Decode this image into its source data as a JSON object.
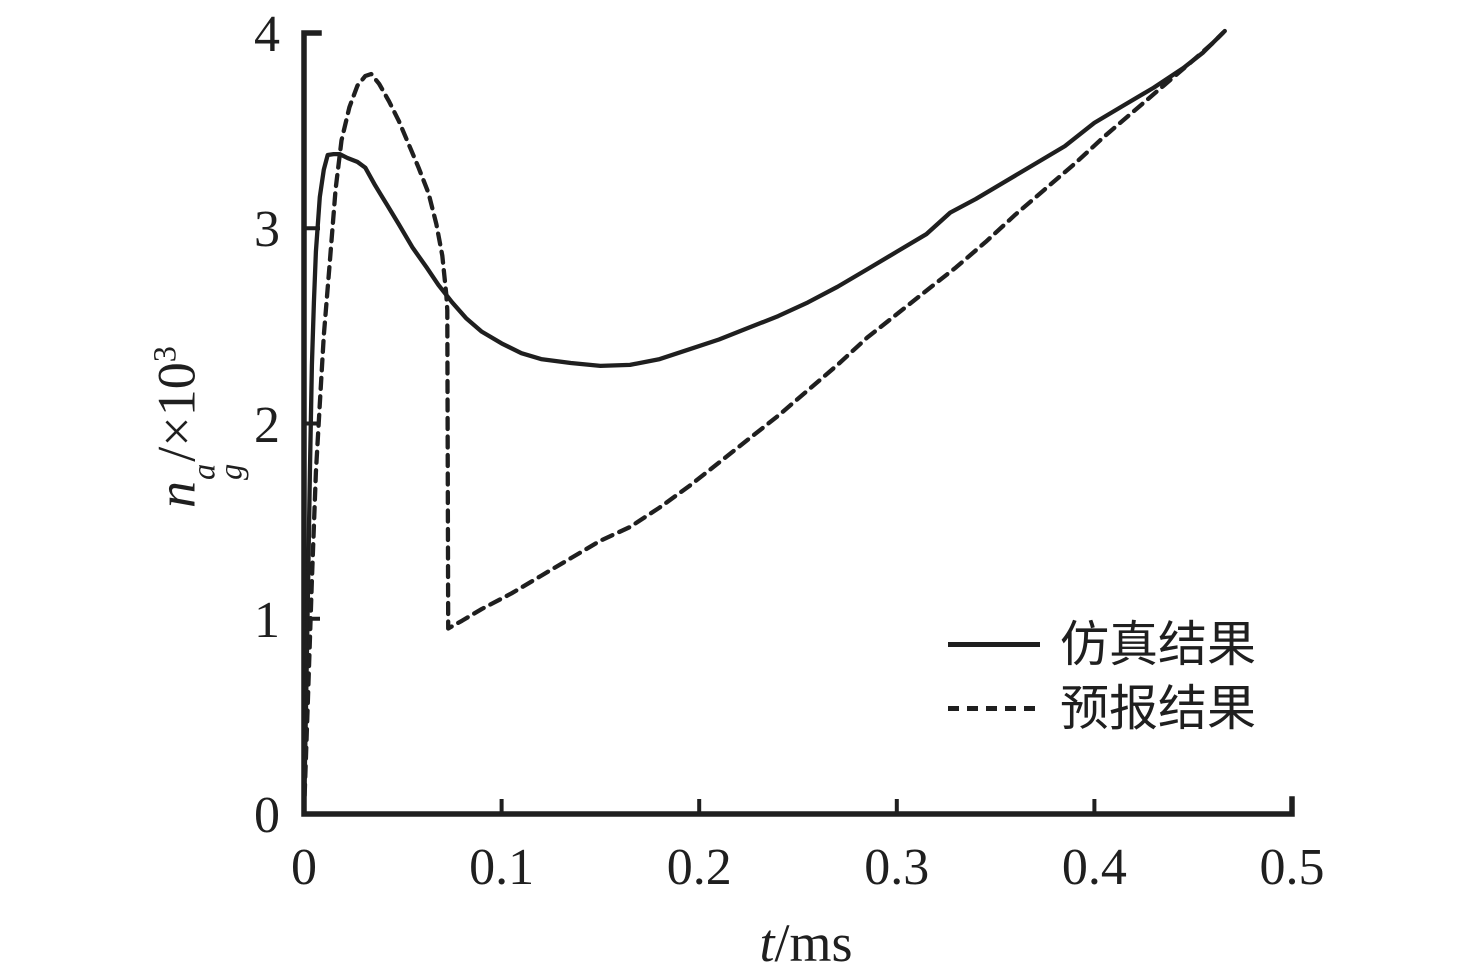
{
  "figure": {
    "background": "#ffffff",
    "line_color": "#1f1f1f",
    "axis_color": "#1f1f1f"
  },
  "chart_data": {
    "type": "line",
    "title": "",
    "xlabel": "t/ms",
    "xlabel_parts": {
      "var": "t",
      "unit": "/ms"
    },
    "ylabel": "n_g^a/×10^3",
    "ylabel_parts": {
      "var": "n",
      "sup": "a",
      "sub": "g",
      "unit": "/×10",
      "exp": "3"
    },
    "xlim": [
      0,
      0.5
    ],
    "ylim": [
      0,
      4
    ],
    "grid": false,
    "x_ticks": [
      0,
      0.1,
      0.2,
      0.3,
      0.4,
      0.5
    ],
    "x_tick_labels": [
      "0",
      "0.1",
      "0.2",
      "0.3",
      "0.4",
      "0.5"
    ],
    "y_ticks": [
      0,
      1,
      2,
      3,
      4
    ],
    "y_tick_labels": [
      "0",
      "1",
      "2",
      "3",
      "4"
    ],
    "legend_position": "inside lower right",
    "series": [
      {
        "name": "仿真结果",
        "style": "solid",
        "color": "#1f1f1f",
        "points": [
          [
            0,
            0
          ],
          [
            0.001,
            0.55
          ],
          [
            0.002,
            1.15
          ],
          [
            0.003,
            1.75
          ],
          [
            0.004,
            2.3
          ],
          [
            0.005,
            2.62
          ],
          [
            0.006,
            2.88
          ],
          [
            0.008,
            3.16
          ],
          [
            0.01,
            3.3
          ],
          [
            0.012,
            3.375
          ],
          [
            0.015,
            3.38
          ],
          [
            0.018,
            3.38
          ],
          [
            0.022,
            3.36
          ],
          [
            0.027,
            3.34
          ],
          [
            0.031,
            3.31
          ],
          [
            0.036,
            3.22
          ],
          [
            0.042,
            3.12
          ],
          [
            0.048,
            3.02
          ],
          [
            0.055,
            2.9
          ],
          [
            0.062,
            2.8
          ],
          [
            0.068,
            2.71
          ],
          [
            0.075,
            2.62
          ],
          [
            0.082,
            2.54
          ],
          [
            0.09,
            2.47
          ],
          [
            0.1,
            2.41
          ],
          [
            0.11,
            2.36
          ],
          [
            0.12,
            2.33
          ],
          [
            0.135,
            2.31
          ],
          [
            0.15,
            2.295
          ],
          [
            0.165,
            2.3
          ],
          [
            0.18,
            2.33
          ],
          [
            0.195,
            2.38
          ],
          [
            0.21,
            2.43
          ],
          [
            0.225,
            2.49
          ],
          [
            0.24,
            2.55
          ],
          [
            0.255,
            2.62
          ],
          [
            0.27,
            2.7
          ],
          [
            0.285,
            2.79
          ],
          [
            0.3,
            2.88
          ],
          [
            0.315,
            2.97
          ],
          [
            0.327,
            3.08
          ],
          [
            0.34,
            3.15
          ],
          [
            0.355,
            3.24
          ],
          [
            0.37,
            3.33
          ],
          [
            0.385,
            3.42
          ],
          [
            0.4,
            3.54
          ],
          [
            0.415,
            3.63
          ],
          [
            0.43,
            3.72
          ],
          [
            0.445,
            3.82
          ],
          [
            0.455,
            3.9
          ],
          [
            0.465,
            4.0
          ]
        ]
      },
      {
        "name": "预报结果",
        "style": "dashed",
        "color": "#1f1f1f",
        "points": [
          [
            0,
            0
          ],
          [
            0.002,
            0.6
          ],
          [
            0.004,
            1.2
          ],
          [
            0.006,
            1.75
          ],
          [
            0.008,
            2.1
          ],
          [
            0.01,
            2.45
          ],
          [
            0.013,
            2.82
          ],
          [
            0.016,
            3.2
          ],
          [
            0.019,
            3.45
          ],
          [
            0.023,
            3.62
          ],
          [
            0.027,
            3.73
          ],
          [
            0.031,
            3.78
          ],
          [
            0.034,
            3.79
          ],
          [
            0.038,
            3.74
          ],
          [
            0.043,
            3.65
          ],
          [
            0.048,
            3.55
          ],
          [
            0.053,
            3.43
          ],
          [
            0.058,
            3.31
          ],
          [
            0.063,
            3.18
          ],
          [
            0.067,
            3.02
          ],
          [
            0.07,
            2.86
          ],
          [
            0.072,
            2.66
          ],
          [
            0.0725,
            2.58
          ],
          [
            0.073,
            0.95
          ],
          [
            0.08,
            0.99
          ],
          [
            0.09,
            1.05
          ],
          [
            0.105,
            1.13
          ],
          [
            0.12,
            1.22
          ],
          [
            0.135,
            1.31
          ],
          [
            0.15,
            1.4
          ],
          [
            0.165,
            1.47
          ],
          [
            0.18,
            1.57
          ],
          [
            0.195,
            1.68
          ],
          [
            0.21,
            1.8
          ],
          [
            0.225,
            1.92
          ],
          [
            0.24,
            2.04
          ],
          [
            0.255,
            2.17
          ],
          [
            0.27,
            2.3
          ],
          [
            0.285,
            2.44
          ],
          [
            0.3,
            2.56
          ],
          [
            0.315,
            2.68
          ],
          [
            0.33,
            2.8
          ],
          [
            0.345,
            2.93
          ],
          [
            0.36,
            3.07
          ],
          [
            0.375,
            3.2
          ],
          [
            0.39,
            3.33
          ],
          [
            0.405,
            3.47
          ],
          [
            0.42,
            3.6
          ],
          [
            0.435,
            3.73
          ],
          [
            0.45,
            3.86
          ],
          [
            0.46,
            3.95
          ],
          [
            0.466,
            4.01
          ]
        ]
      }
    ]
  }
}
